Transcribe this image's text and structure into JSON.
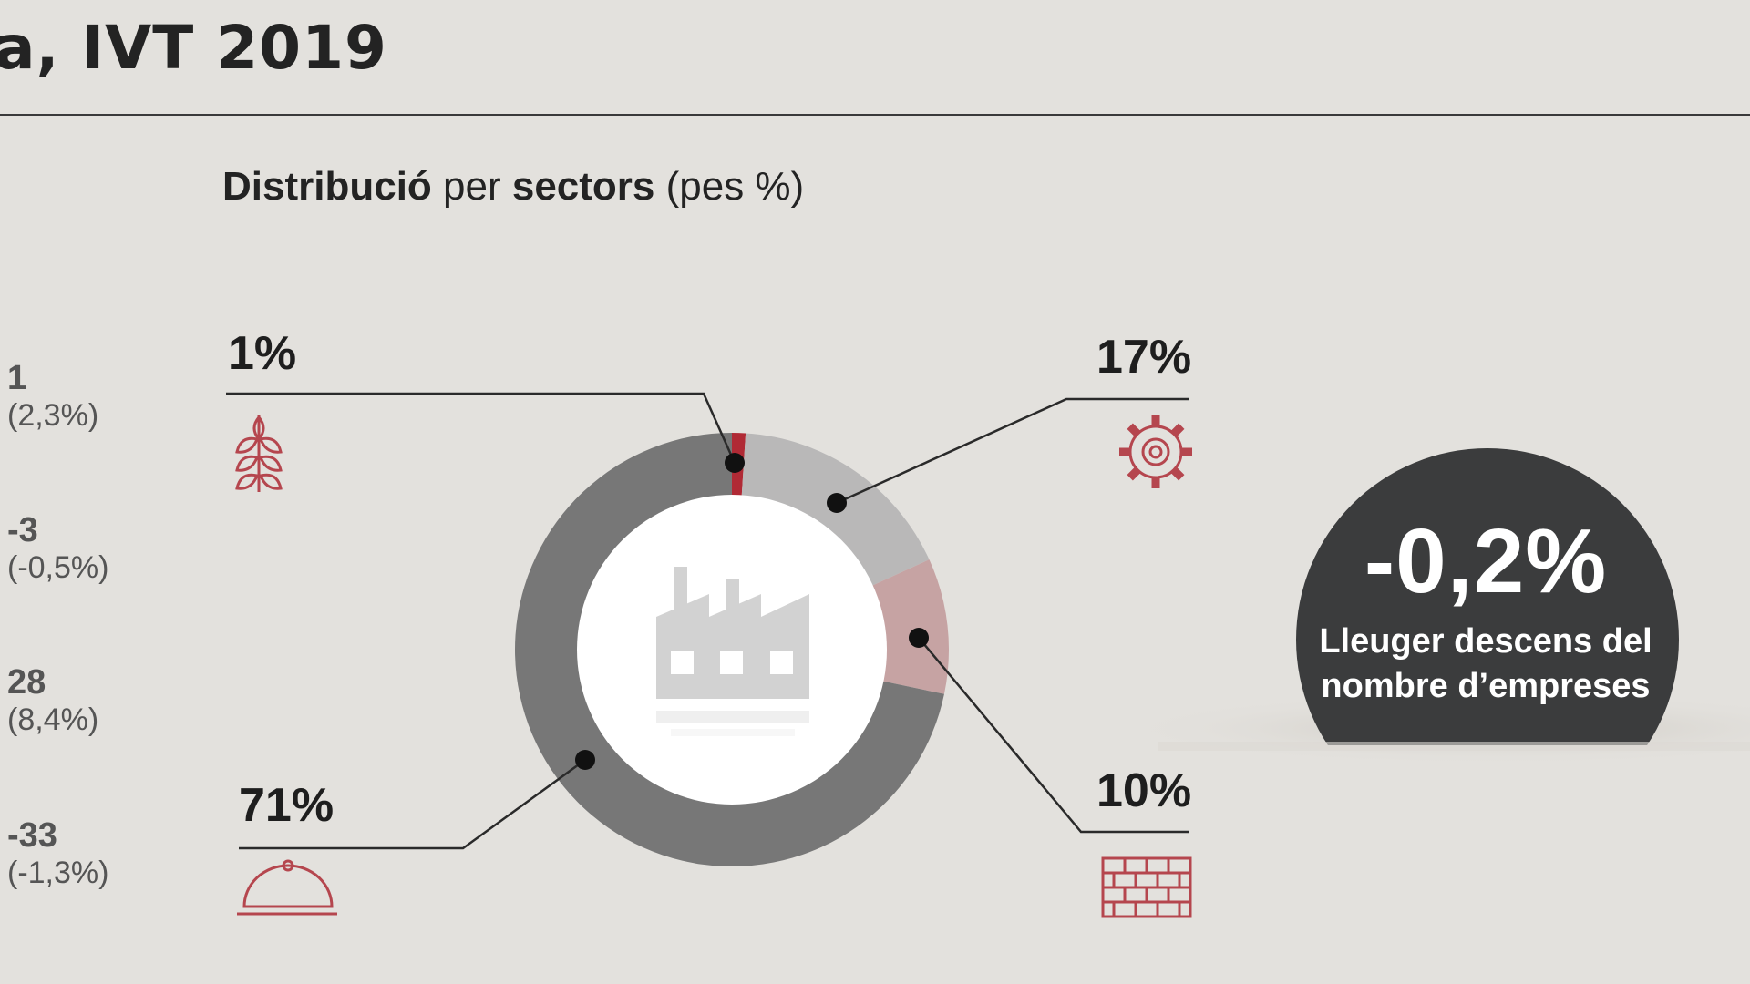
{
  "header": {
    "title": "a, IVT 2019",
    "subtitle_bold1": "Distribució",
    "subtitle_light1": " per ",
    "subtitle_bold2": "sectors",
    "subtitle_light2": " (pes %)"
  },
  "left_stats": [
    {
      "value": "1",
      "pct": "(2,3%)"
    },
    {
      "value": "-3",
      "pct": "(-0,5%)"
    },
    {
      "value": "28",
      "pct": "(8,4%)"
    },
    {
      "value": "-33",
      "pct": "(-1,3%)"
    }
  ],
  "chart_data": {
    "type": "pie",
    "categories": [
      "Agricultura",
      "Indústria",
      "Construcció",
      "Serveis"
    ],
    "values": [
      1,
      17,
      10,
      71
    ],
    "labels": [
      "1%",
      "17%",
      "10%",
      "71%"
    ],
    "colors": [
      "#b02a35",
      "#b9b8b8",
      "#c6a3a3",
      "#777777"
    ],
    "icons": [
      "wheat-icon",
      "gear-icon",
      "bricks-icon",
      "cloche-icon"
    ]
  },
  "callout": {
    "value": "-0,2%",
    "text_line1": "Lleuger descens del",
    "text_line2": "nombre d’empreses"
  },
  "colors": {
    "background": "#e3e1dd",
    "icon_red": "#b5464e",
    "bubble": "#3b3c3d"
  }
}
